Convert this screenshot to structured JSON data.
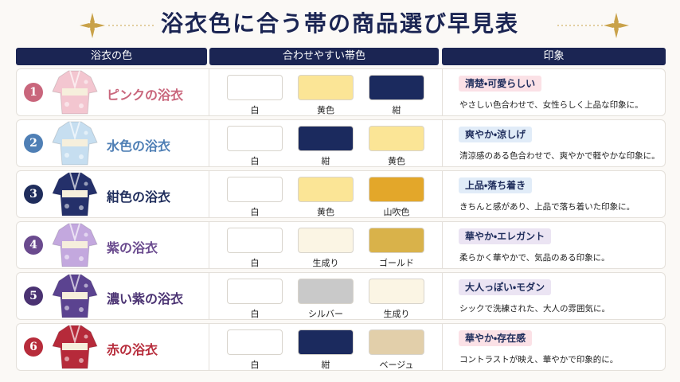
{
  "title": "浴衣色に合う帯の商品選び早見表",
  "headers": [
    "浴衣の色",
    "合わせやすい帯色",
    "印象"
  ],
  "rows": [
    {
      "number": "1",
      "name": "ピンクの浴衣",
      "color": "#c9667c",
      "kimono_color": "#f3c6d0",
      "obi": [
        {
          "label": "白",
          "color": "#ffffff"
        },
        {
          "label": "黄色",
          "color": "#fbe596"
        },
        {
          "label": "紺",
          "color": "#1b2a5e"
        }
      ],
      "tag": "清楚・可愛らしい",
      "tag_color": "#fbe1e6",
      "text": "やさしい色合わせで、女性らしく上品な印象に。"
    },
    {
      "number": "2",
      "name": "水色の浴衣",
      "color": "#4f7fb5",
      "kimono_color": "#c6def0",
      "obi": [
        {
          "label": "白",
          "color": "#ffffff"
        },
        {
          "label": "紺",
          "color": "#1b2a5e"
        },
        {
          "label": "黄色",
          "color": "#fbe596"
        }
      ],
      "tag": "爽やか・涼しげ",
      "tag_color": "#e1ecf8",
      "text": "清涼感のある色合わせで、爽やかで軽やかな印象に。"
    },
    {
      "number": "3",
      "name": "紺色の浴衣",
      "color": "#1f2d5c",
      "kimono_color": "#24306a",
      "obi": [
        {
          "label": "白",
          "color": "#ffffff"
        },
        {
          "label": "黄色",
          "color": "#fbe596"
        },
        {
          "label": "山吹色",
          "color": "#e3a72a"
        }
      ],
      "tag": "上品・落ち着き",
      "tag_color": "#e1ecf8",
      "text": "きちんと感があり、上品で落ち着いた印象に。"
    },
    {
      "number": "4",
      "name": "紫の浴衣",
      "color": "#6a4a8e",
      "kimono_color": "#c3a8de",
      "obi": [
        {
          "label": "白",
          "color": "#ffffff"
        },
        {
          "label": "生成り",
          "color": "#fbf5e4"
        },
        {
          "label": "ゴールド",
          "color": "#d9b24a"
        }
      ],
      "tag": "華やか・エレガント",
      "tag_color": "#ebe4f3",
      "text": "柔らかく華やかで、気品のある印象に。"
    },
    {
      "number": "5",
      "name": "濃い紫の浴衣",
      "color": "#4a3272",
      "kimono_color": "#5b4390",
      "obi": [
        {
          "label": "白",
          "color": "#ffffff"
        },
        {
          "label": "シルバー",
          "color": "#c9c9c9"
        },
        {
          "label": "生成り",
          "color": "#fbf5e4"
        }
      ],
      "tag": "大人っぽい・モダン",
      "tag_color": "#ebe4f3",
      "text": "シックで洗練された、大人の雰囲気に。"
    },
    {
      "number": "6",
      "name": "赤の浴衣",
      "color": "#b72c3b",
      "kimono_color": "#b62a3a",
      "obi": [
        {
          "label": "白",
          "color": "#ffffff"
        },
        {
          "label": "紺",
          "color": "#1b2a5e"
        },
        {
          "label": "ベージュ",
          "color": "#e2cfaa"
        }
      ],
      "tag": "華やか・存在感",
      "tag_color": "#fbe1e6",
      "text": "コントラストが映え、華やかで印象的に。"
    }
  ]
}
